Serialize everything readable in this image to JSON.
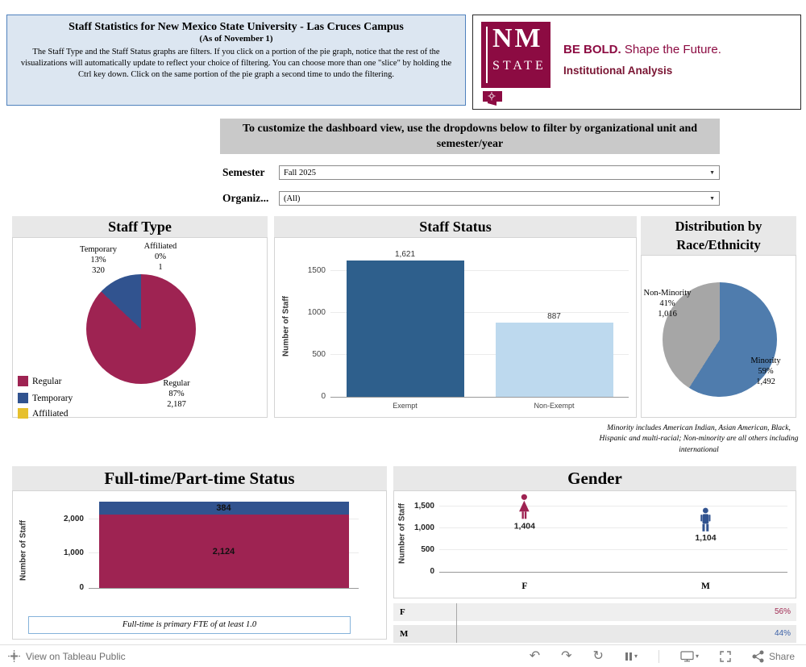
{
  "info_box": {
    "title": "Staff Statistics for New Mexico State University - Las Cruces Campus",
    "subtitle": "(As of November 1)",
    "description": "The Staff Type and the Staff Status graphs are filters. If you click on a portion of the pie graph, notice that the rest of the visualizations will automatically update to reflect your choice of filtering. You can choose more than one \"slice\" by holding the Ctrl key down.   Click on the same portion of the pie graph a second time to undo the filtering."
  },
  "logo": {
    "nm": "NM",
    "state": "STATE",
    "be_bold": "BE BOLD.",
    "tagline": " Shape the Future.",
    "unit": "Institutional Analysis",
    "crimson": "#8C0B42"
  },
  "banner": {
    "text": "To customize the dashboard view, use the dropdowns below to filter by organizational unit and semester/year"
  },
  "filters": {
    "semester": {
      "label": "Semester",
      "value": "Fall 2025"
    },
    "organization": {
      "label": "Organiz...",
      "value": "(All)"
    },
    "caret": "▼"
  },
  "chart_data": [
    {
      "id": "staff_type",
      "type": "pie",
      "title": "Staff Type",
      "slices": [
        {
          "label": "Regular",
          "value": 2187,
          "pct": 87,
          "pct_label": "87%",
          "count_label": "2,187",
          "color": "#9e2352"
        },
        {
          "label": "Temporary",
          "value": 320,
          "pct": 13,
          "pct_label": "13%",
          "count_label": "320",
          "color": "#31538f"
        },
        {
          "label": "Affiliated",
          "value": 1,
          "pct": 0,
          "pct_label": "0%",
          "count_label": "1",
          "color": "#e6c02e"
        }
      ],
      "legend_position": "bottom-left"
    },
    {
      "id": "staff_status",
      "type": "bar",
      "title": "Staff Status",
      "categories": [
        "Exempt",
        "Non-Exempt"
      ],
      "values": [
        1621,
        887
      ],
      "value_labels": [
        "1,621",
        "887"
      ],
      "colors": [
        "#2e5f8c",
        "#bdd9ee"
      ],
      "ylabel": "Number of Staff",
      "yticks": [
        "0",
        "500",
        "1000",
        "1500"
      ],
      "ylim": [
        0,
        1750
      ],
      "grid": true
    },
    {
      "id": "race_ethnicity",
      "type": "pie",
      "title": "Distribution by Race/Ethnicity",
      "slices": [
        {
          "label": "Minority",
          "value": 1492,
          "pct": 59,
          "pct_label": "59%",
          "count_label": "1,492",
          "color": "#4f7cad"
        },
        {
          "label": "Non-Minority",
          "value": 1016,
          "pct": 41,
          "pct_label": "41%",
          "count_label": "1,016",
          "color": "#a6a6a6"
        }
      ],
      "footnote": "Minority includes American Indian, Asian American, Black, Hispanic and multi-racial; Non-minority are all others including international"
    },
    {
      "id": "fulltime_parttime",
      "type": "bar",
      "stacked": true,
      "title": "Full-time/Part-time Status",
      "categories": [
        ""
      ],
      "series": [
        {
          "name": "Full-time",
          "values": [
            2124
          ],
          "value_labels": [
            "2,124"
          ],
          "color": "#9e2352"
        },
        {
          "name": "Part-time",
          "values": [
            384
          ],
          "value_labels": [
            "384"
          ],
          "color": "#31538f"
        }
      ],
      "ylabel": "Number of Staff",
      "yticks": [
        "0",
        "1,000",
        "2,000"
      ],
      "ylim": [
        0,
        2600
      ],
      "footnote": "Full-time is primary FTE of at least 1.0"
    },
    {
      "id": "gender",
      "type": "pictogram",
      "title": "Gender",
      "categories": [
        "F",
        "M"
      ],
      "values": [
        1404,
        1104
      ],
      "value_labels": [
        "1,404",
        "1,104"
      ],
      "colors": [
        "#9e2352",
        "#31538f"
      ],
      "ylabel": "Number of Staff",
      "yticks": [
        "0",
        "500",
        "1,000",
        "1,500"
      ],
      "ylim": [
        0,
        1750
      ],
      "table": [
        {
          "label": "F",
          "pct": "56%",
          "color": "#a02a52"
        },
        {
          "label": "M",
          "pct": "44%",
          "color": "#3c62a8"
        }
      ]
    }
  ],
  "toolbar": {
    "view_label": "View on Tableau Public",
    "share_label": "Share",
    "undo_glyph": "↶",
    "redo_glyph": "↷",
    "replay_glyph": "↻",
    "caret_glyph": "▾"
  }
}
